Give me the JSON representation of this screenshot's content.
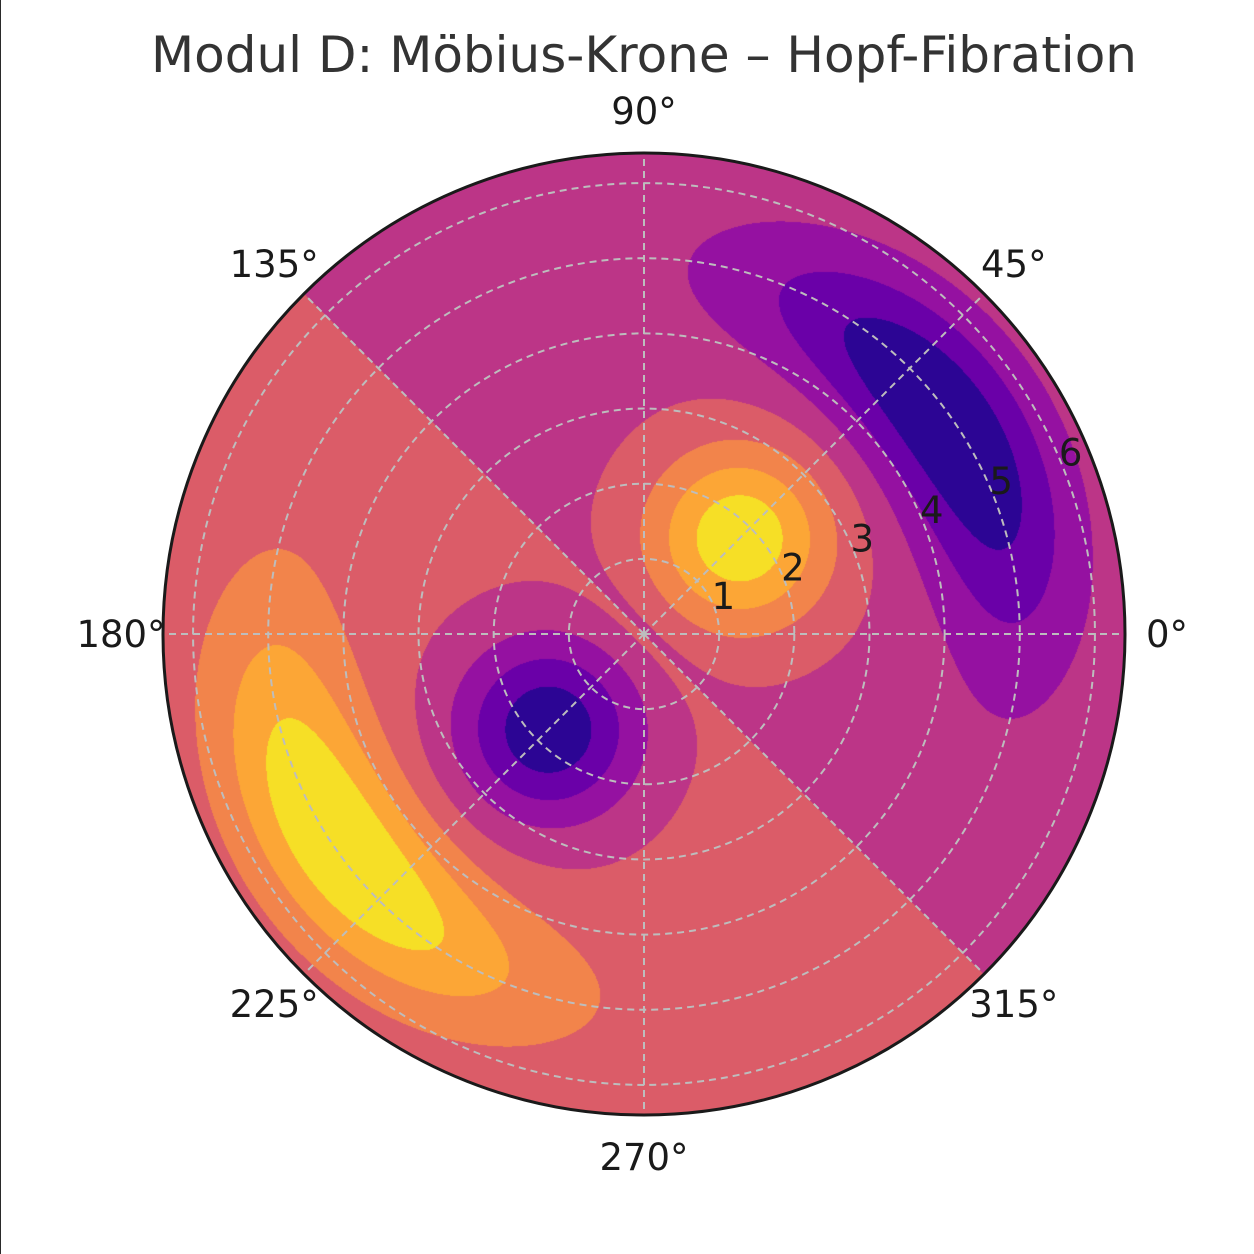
{
  "chart_data": {
    "type": "polar-contourf",
    "title": "Modul D: Möbius-Krone – Hopf-Fibration",
    "theta_ticks": [
      0,
      45,
      90,
      135,
      180,
      225,
      270,
      315
    ],
    "theta_tick_labels": [
      "0°",
      "45°",
      "90°",
      "135°",
      "180°",
      "225°",
      "270°",
      "315°"
    ],
    "r_ticks": [
      1,
      2,
      3,
      4,
      5,
      6
    ],
    "r_tick_labels": [
      "1",
      "2",
      "3",
      "4",
      "5",
      "6"
    ],
    "rlim": [
      0,
      6.4
    ],
    "r_label_angle_deg": 22.5,
    "grid": true,
    "colormap": "plasma",
    "colormap_levels": [
      "#2c0594",
      "#6a00a8",
      "#9511a1",
      "#bc3587",
      "#db5c68",
      "#f2844b",
      "#fca636",
      "#f6df26"
    ],
    "field_features": [
      {
        "kind": "maximum",
        "theta_deg": 45,
        "r": 1.8
      },
      {
        "kind": "minimum",
        "theta_deg": 225,
        "r": 1.8
      },
      {
        "kind": "minimum",
        "theta_deg": 35,
        "r": 4.9
      },
      {
        "kind": "maximum",
        "theta_deg": 215,
        "r": 4.9
      }
    ],
    "sector_boundaries_deg": [
      135,
      315
    ]
  }
}
